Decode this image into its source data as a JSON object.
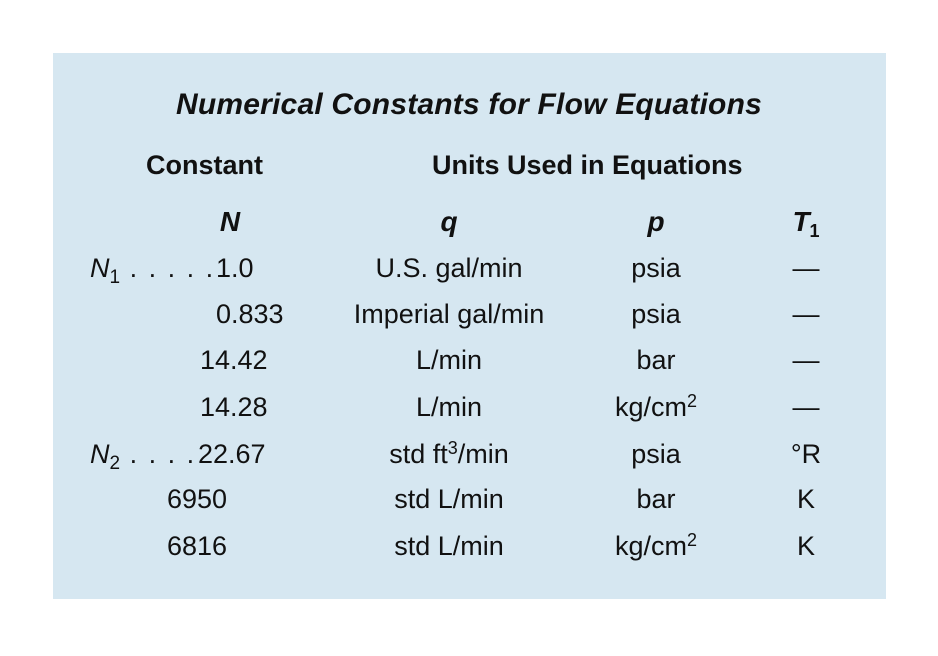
{
  "title": "Numerical Constants for Flow Equations",
  "headers": {
    "constant": "Constant",
    "units": "Units Used in Equations"
  },
  "columns": {
    "n": "N",
    "q": "q",
    "p": "p",
    "t_base": "T",
    "t_sub": "1"
  },
  "groups": {
    "n1": {
      "symbol": "N",
      "sub": "1",
      "dots": " . . . . ."
    },
    "n2": {
      "symbol": "N",
      "sub": "2",
      "dots": " . . . ."
    }
  },
  "rows": [
    {
      "n": "1.0",
      "q": "U.S. gal/min",
      "p": "psia",
      "t": "—"
    },
    {
      "n": "0.833",
      "q": "Imperial gal/min",
      "p": "psia",
      "t": "—"
    },
    {
      "n": "14.42",
      "q": "L/min",
      "p": "bar",
      "t": "—"
    },
    {
      "n": "14.28",
      "q": "L/min",
      "p_base": "kg/cm",
      "p_sup": "2",
      "t": "—"
    },
    {
      "n": "22.67",
      "q_base": "std ft",
      "q_sup": "3",
      "q_tail": "/min",
      "p": "psia",
      "t": "°R"
    },
    {
      "n": "6950",
      "q": "std L/min",
      "p": "bar",
      "t": "K"
    },
    {
      "n": "6816",
      "q": "std L/min",
      "p_base": "kg/cm",
      "p_sup": "2",
      "t": "K"
    }
  ]
}
